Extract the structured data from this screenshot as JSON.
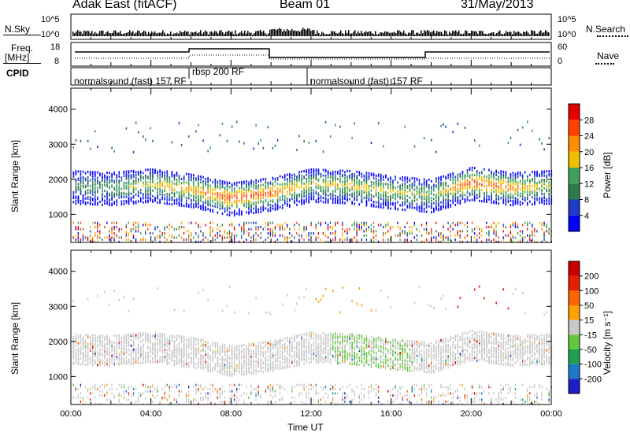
{
  "header": {
    "station": "Adak East (fitACF)",
    "beam": "Beam 01",
    "date": "31/May/2013"
  },
  "panels": {
    "nsky": {
      "label": "N.Sky",
      "ticks": [
        "10^5",
        "10^0"
      ],
      "right_label": "N.Search",
      "right_ticks": [
        "10^5",
        "10^0"
      ]
    },
    "freq": {
      "label_top": "Freq.",
      "label_bottom": "[MHz]",
      "ticks": [
        "18",
        "8"
      ],
      "right_label": "Nave",
      "right_ticks": [
        "60",
        "0"
      ]
    },
    "cpid": {
      "label": "CPID",
      "programs": [
        "normalsound (fast) 157 RF",
        "rbsp 200 RF",
        "normalsound (fast) 157 RF"
      ]
    }
  },
  "colors": {
    "power_scale": [
      "#0000ff",
      "#1e3cc8",
      "#2f7a4a",
      "#3fa060",
      "#f0c000",
      "#ff8c00",
      "#ff4000",
      "#e60000"
    ],
    "velocity_scale": [
      "#1e1ec8",
      "#1e78c8",
      "#1ea050",
      "#64c83c",
      "#c8c8c8",
      "#ffa000",
      "#ff6400",
      "#e61e00",
      "#c80000"
    ]
  },
  "chart_data": [
    {
      "type": "heatmap",
      "panel": "power",
      "ylabel": "Slant Range [km]",
      "yticks": [
        "4000",
        "3000",
        "2000",
        "1000"
      ],
      "ylim": [
        200,
        4600
      ],
      "colorbar_label": "Power [dB]",
      "colorbar_ticks": [
        "28",
        "24",
        "20",
        "16",
        "12",
        "8",
        "4"
      ],
      "colorbar_range": [
        0,
        32
      ],
      "x_hours": [
        0,
        2,
        4,
        6,
        8,
        10,
        12,
        14,
        16,
        18,
        20,
        22,
        24
      ],
      "main_echo_band_center_km": [
        1800,
        1750,
        1850,
        1700,
        1450,
        1600,
        1850,
        1800,
        1650,
        1550,
        1900,
        1750,
        1800
      ],
      "main_echo_band_peak_power_db": [
        10,
        14,
        18,
        22,
        28,
        26,
        18,
        20,
        18,
        16,
        28,
        24,
        16
      ]
    },
    {
      "type": "heatmap",
      "panel": "velocity",
      "ylabel": "Slant Range [km]",
      "yticks": [
        "4000",
        "3000",
        "2000",
        "1000"
      ],
      "ylim": [
        200,
        4600
      ],
      "xlabel": "Time UT",
      "xticks": [
        "00:00",
        "04:00",
        "08:00",
        "12:00",
        "16:00",
        "20:00",
        "00:00"
      ],
      "colorbar_label": "Velocity [m s⁻¹]",
      "colorbar_ticks": [
        "200",
        "100",
        "50",
        "15",
        "-15",
        "-50",
        "-100",
        "-200"
      ],
      "colorbar_range": [
        -250,
        250
      ]
    }
  ]
}
